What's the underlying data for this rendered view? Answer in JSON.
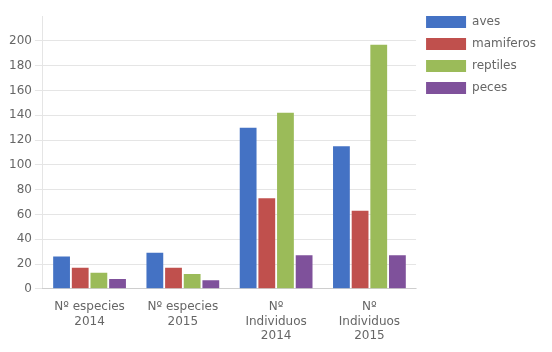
{
  "chart_data": {
    "type": "bar",
    "categories": [
      "Nº especies\n2014",
      "Nº especies\n2015",
      "Nº\nIndividuos\n2014",
      "Nº\nIndividuos\n2015"
    ],
    "series": [
      {
        "name": "aves",
        "color": "#4472C4",
        "values": [
          26,
          29,
          130,
          115
        ]
      },
      {
        "name": "mamiferos",
        "color": "#C0504D",
        "values": [
          17,
          17,
          73,
          63
        ]
      },
      {
        "name": "reptiles",
        "color": "#9BBB59",
        "values": [
          13,
          12,
          142,
          197
        ]
      },
      {
        "name": "peces",
        "color": "#7F519B",
        "values": [
          8,
          7,
          27,
          27
        ]
      }
    ],
    "ylim": [
      0,
      220
    ],
    "yticks": [
      0,
      20,
      40,
      60,
      80,
      100,
      120,
      140,
      160,
      180,
      200
    ],
    "grid": true,
    "legend": "right"
  }
}
